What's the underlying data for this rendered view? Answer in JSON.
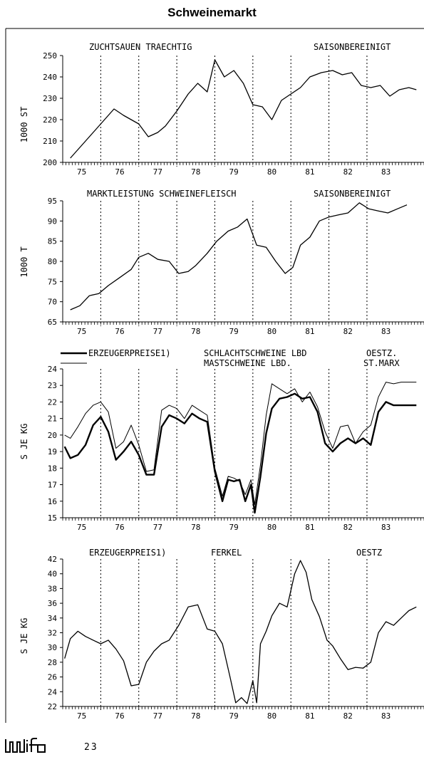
{
  "page": {
    "title": "Schweinemarkt",
    "page_number": "23",
    "logo_text": "wifo"
  },
  "chart_data": [
    {
      "type": "line",
      "title": "ZUCHTSAUEN TRAECHTIG",
      "subtitle": "SAISONBEREINIGT",
      "ylabel": "1000 ST",
      "xlabel": "",
      "ylim": [
        200,
        250
      ],
      "yticks": [
        200,
        210,
        220,
        230,
        240,
        250
      ],
      "xlim": [
        1974.5,
        1984.0
      ],
      "year_labels": [
        "75",
        "76",
        "77",
        "78",
        "79",
        "80",
        "81",
        "82",
        "83"
      ],
      "year_breaks": [
        1975.5,
        1976.5,
        1977.5,
        1978.5,
        1979.5,
        1980.5,
        1981.5,
        1982.5
      ],
      "grid": "vertical dotted at year boundaries",
      "series": [
        {
          "x": [
            1974.7,
            1975.05,
            1975.35,
            1975.6,
            1975.85,
            1976.1,
            1976.5,
            1976.75,
            1977.0,
            1977.2,
            1977.5,
            1977.8,
            1978.05,
            1978.3,
            1978.5,
            1978.75,
            1979.0,
            1979.25,
            1979.5,
            1979.75,
            1980.0,
            1980.25,
            1980.5,
            1980.75,
            1981.0,
            1981.3,
            1981.6,
            1981.85,
            1982.1,
            1982.35,
            1982.6,
            1982.85,
            1983.1,
            1983.35,
            1983.6,
            1983.8
          ],
          "y": [
            202,
            209,
            215,
            220,
            225,
            222,
            218,
            212,
            214,
            217,
            224,
            232,
            237,
            233,
            248,
            240,
            243,
            237,
            227,
            226,
            220,
            229,
            232,
            235,
            240,
            242,
            243,
            241,
            242,
            236,
            235,
            236,
            231,
            234,
            235,
            234
          ]
        }
      ]
    },
    {
      "type": "line",
      "title": "MARKTLEISTUNG SCHWEINEFLEISCH",
      "subtitle": "SAISONBEREINIGT",
      "ylabel": "1000 T",
      "xlabel": "",
      "ylim": [
        65,
        95
      ],
      "yticks": [
        65,
        70,
        75,
        80,
        85,
        90,
        95
      ],
      "xlim": [
        1974.5,
        1984.0
      ],
      "year_labels": [
        "75",
        "76",
        "77",
        "78",
        "79",
        "80",
        "81",
        "82",
        "83"
      ],
      "year_breaks": [
        1975.5,
        1976.5,
        1977.5,
        1978.5,
        1979.5,
        1980.5,
        1981.5,
        1982.5
      ],
      "grid": "vertical dotted at year boundaries",
      "series": [
        {
          "x": [
            1974.7,
            1974.95,
            1975.2,
            1975.45,
            1975.7,
            1976.0,
            1976.3,
            1976.5,
            1976.75,
            1977.0,
            1977.3,
            1977.55,
            1977.8,
            1978.0,
            1978.3,
            1978.55,
            1978.85,
            1979.1,
            1979.35,
            1979.6,
            1979.85,
            1980.1,
            1980.35,
            1980.55,
            1980.75,
            1981.0,
            1981.25,
            1981.5,
            1981.75,
            1982.0,
            1982.3,
            1982.55,
            1982.8,
            1983.05,
            1983.3,
            1983.55
          ],
          "y": [
            68,
            69,
            71.5,
            72,
            74,
            76,
            78,
            81,
            82,
            80.5,
            80,
            77,
            77.5,
            79,
            82,
            85,
            87.5,
            88.5,
            90.5,
            84,
            83.5,
            80,
            77,
            78.5,
            84,
            86,
            90,
            91,
            91.5,
            92,
            94.5,
            93,
            92.5,
            92,
            93,
            94
          ]
        }
      ]
    },
    {
      "type": "line",
      "title": "ERZEUGERPREISE1)",
      "subtitle": "OESTZ.",
      "ylabel": "S JE KG",
      "xlabel": "",
      "ylim": [
        15,
        24
      ],
      "yticks": [
        15,
        16,
        17,
        18,
        19,
        20,
        21,
        22,
        23,
        24
      ],
      "xlim": [
        1974.5,
        1984.0
      ],
      "year_labels": [
        "75",
        "76",
        "77",
        "78",
        "79",
        "80",
        "81",
        "82",
        "83"
      ],
      "year_breaks": [
        1975.5,
        1976.5,
        1977.5,
        1978.5,
        1979.5,
        1980.5,
        1981.5,
        1982.5
      ],
      "grid": "vertical dotted at year boundaries",
      "legend": [
        {
          "label": "SCHLACHTSCHWEINE LBD",
          "extra": "OESTZ."
        },
        {
          "label": "MASTSCHWEINE LBD.",
          "extra": "ST.MARX"
        }
      ],
      "series": [
        {
          "name": "SCHLACHTSCHWEINE LBD",
          "style": "thick",
          "x": [
            1974.55,
            1974.7,
            1974.9,
            1975.1,
            1975.3,
            1975.5,
            1975.7,
            1975.9,
            1976.1,
            1976.3,
            1976.5,
            1976.7,
            1976.9,
            1977.1,
            1977.3,
            1977.5,
            1977.7,
            1977.9,
            1978.1,
            1978.3,
            1978.5,
            1978.7,
            1978.85,
            1979.0,
            1979.15,
            1979.3,
            1979.45,
            1979.55,
            1979.7,
            1979.85,
            1980.0,
            1980.2,
            1980.4,
            1980.6,
            1980.8,
            1981.0,
            1981.2,
            1981.4,
            1981.6,
            1981.8,
            1982.0,
            1982.2,
            1982.4,
            1982.6,
            1982.8,
            1983.0,
            1983.2,
            1983.4,
            1983.6,
            1983.8
          ],
          "y": [
            19.3,
            18.6,
            18.8,
            19.4,
            20.6,
            21.1,
            20.2,
            18.5,
            19.0,
            19.6,
            18.8,
            17.6,
            17.6,
            20.5,
            21.2,
            21.0,
            20.7,
            21.3,
            21.0,
            20.8,
            17.8,
            16.0,
            17.3,
            17.2,
            17.3,
            16.0,
            17.0,
            15.3,
            17.5,
            20.1,
            21.6,
            22.2,
            22.3,
            22.5,
            22.2,
            22.3,
            21.4,
            19.5,
            19.0,
            19.5,
            19.8,
            19.5,
            19.8,
            19.4,
            21.4,
            22.0,
            21.8,
            21.8,
            21.8,
            21.8
          ]
        },
        {
          "name": "MASTSCHWEINE LBD.",
          "style": "thin",
          "x": [
            1974.55,
            1974.7,
            1974.9,
            1975.1,
            1975.3,
            1975.5,
            1975.7,
            1975.9,
            1976.1,
            1976.3,
            1976.5,
            1976.7,
            1976.9,
            1977.1,
            1977.3,
            1977.5,
            1977.7,
            1977.9,
            1978.1,
            1978.3,
            1978.5,
            1978.7,
            1978.85,
            1979.0,
            1979.15,
            1979.3,
            1979.45,
            1979.55,
            1979.7,
            1979.85,
            1980.0,
            1980.2,
            1980.4,
            1980.6,
            1980.8,
            1981.0,
            1981.2,
            1981.4,
            1981.6,
            1981.8,
            1982.0,
            1982.2,
            1982.4,
            1982.6,
            1982.8,
            1983.0,
            1983.2,
            1983.4,
            1983.6,
            1983.8
          ],
          "y": [
            20.0,
            19.8,
            20.5,
            21.3,
            21.8,
            22.0,
            21.4,
            19.2,
            19.6,
            20.6,
            19.4,
            17.8,
            17.9,
            21.5,
            21.8,
            21.6,
            21.0,
            21.8,
            21.5,
            21.2,
            18.0,
            16.3,
            17.5,
            17.4,
            17.2,
            16.4,
            17.3,
            15.8,
            18.2,
            21.2,
            23.1,
            22.8,
            22.5,
            22.8,
            22.0,
            22.6,
            21.7,
            20.2,
            19.2,
            20.5,
            20.6,
            19.5,
            20.2,
            20.6,
            22.3,
            23.2,
            23.1,
            23.2,
            23.2,
            23.2
          ]
        }
      ]
    },
    {
      "type": "line",
      "title": "ERZEUGERPREIS1)",
      "subtitle": "FERKEL",
      "extra_label": "OESTZ",
      "ylabel": "S JE KG",
      "xlabel": "",
      "ylim": [
        22,
        42
      ],
      "yticks": [
        22,
        24,
        26,
        28,
        30,
        32,
        34,
        36,
        38,
        40,
        42
      ],
      "xlim": [
        1974.5,
        1984.0
      ],
      "year_labels": [
        "75",
        "76",
        "77",
        "78",
        "79",
        "80",
        "81",
        "82",
        "83"
      ],
      "year_breaks": [
        1975.5,
        1976.5,
        1977.5,
        1978.5,
        1979.5,
        1980.5,
        1981.5,
        1982.5
      ],
      "grid": "vertical dotted at year boundaries",
      "series": [
        {
          "x": [
            1974.55,
            1974.7,
            1974.9,
            1975.1,
            1975.3,
            1975.5,
            1975.7,
            1975.9,
            1976.1,
            1976.3,
            1976.5,
            1976.7,
            1976.9,
            1977.1,
            1977.3,
            1977.55,
            1977.8,
            1978.05,
            1978.3,
            1978.5,
            1978.7,
            1978.9,
            1979.05,
            1979.2,
            1979.35,
            1979.5,
            1979.6,
            1979.7,
            1979.85,
            1980.0,
            1980.2,
            1980.4,
            1980.6,
            1980.75,
            1980.9,
            1981.05,
            1981.25,
            1981.45,
            1981.6,
            1981.8,
            1982.0,
            1982.2,
            1982.4,
            1982.6,
            1982.8,
            1983.0,
            1983.2,
            1983.4,
            1983.6,
            1983.8
          ],
          "y": [
            28.5,
            31.2,
            32.2,
            31.5,
            31.0,
            30.5,
            31.0,
            29.8,
            28.2,
            24.8,
            25.0,
            28.0,
            29.5,
            30.5,
            31.0,
            33.0,
            35.5,
            35.8,
            32.5,
            32.2,
            30.5,
            26.0,
            22.5,
            23.2,
            22.4,
            25.5,
            22.5,
            30.5,
            32.2,
            34.3,
            36.0,
            35.5,
            40.0,
            41.8,
            40.2,
            36.5,
            34.2,
            31.0,
            30.2,
            28.5,
            27.0,
            27.3,
            27.2,
            28.0,
            32.0,
            33.5,
            33.0,
            34.0,
            35.0,
            35.5
          ]
        }
      ]
    }
  ]
}
